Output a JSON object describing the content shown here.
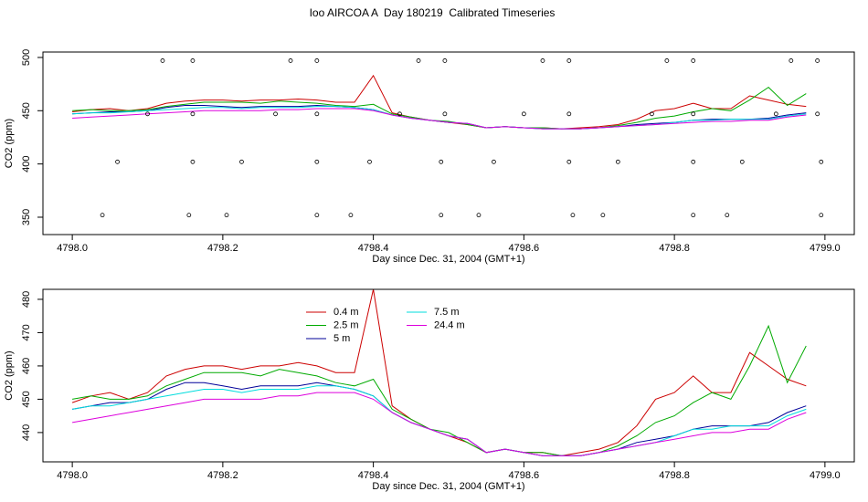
{
  "chart_data": [
    {
      "type": "line",
      "title": "Ioo AIRCOA A  Day 180219  Calibrated Timeseries",
      "x_label": "Day since Dec. 31, 2004 (GMT+1)",
      "y_label": "CO2 (ppm)",
      "xlim": [
        4797.961,
        4799.039
      ],
      "ylim": [
        333.7,
        505.1
      ],
      "xticks": [
        {
          "value": 4798,
          "label": "4798.0"
        },
        4798.2,
        4798.4,
        4798.6,
        4798.8,
        {
          "value": 4799,
          "label": "4799.0"
        }
      ],
      "yticks": [
        350,
        400,
        450,
        500
      ],
      "x": [
        4798,
        4798.025,
        4798.05,
        4798.075,
        4798.1,
        4798.125,
        4798.15,
        4798.175,
        4798.2,
        4798.225,
        4798.25,
        4798.275,
        4798.3,
        4798.325,
        4798.35,
        4798.375,
        4798.4,
        4798.425,
        4798.45,
        4798.475,
        4798.5,
        4798.525,
        4798.55,
        4798.575,
        4798.6,
        4798.625,
        4798.65,
        4798.675,
        4798.7,
        4798.725,
        4798.75,
        4798.775,
        4798.8,
        4798.825,
        4798.85,
        4798.875,
        4798.9,
        4798.925,
        4798.95,
        4798.975
      ],
      "series": [
        {
          "color": "#cc0000",
          "values": [
            449,
            451,
            452,
            450,
            452,
            457,
            459,
            460,
            460,
            459,
            460,
            460,
            461,
            460,
            458,
            458,
            483,
            448,
            444,
            441,
            439,
            437,
            434,
            435,
            434,
            434,
            433,
            434,
            435,
            437,
            442,
            450,
            452,
            457,
            452,
            452,
            464,
            460,
            456,
            454
          ]
        },
        {
          "color": "#00aa00",
          "values": [
            450,
            451,
            450,
            450,
            451,
            454,
            456,
            458,
            458,
            458,
            457,
            459,
            458,
            457,
            455,
            454,
            456,
            447,
            444,
            441,
            440,
            437,
            434,
            435,
            434,
            434,
            433,
            433,
            434,
            436,
            439,
            443,
            445,
            449,
            452,
            450,
            460,
            472,
            455,
            466
          ]
        },
        {
          "color": "#000099",
          "values": [
            447,
            448,
            449,
            449,
            450,
            453,
            455,
            455,
            454,
            453,
            454,
            454,
            454,
            455,
            454,
            453,
            451,
            446,
            443,
            441,
            439,
            438,
            434,
            435,
            434,
            433,
            433,
            433,
            434,
            435,
            437,
            438,
            439,
            441,
            442,
            442,
            442,
            443,
            446,
            448
          ]
        },
        {
          "color": "#00dddd",
          "values": [
            447,
            448,
            448,
            449,
            450,
            451,
            452,
            453,
            453,
            452,
            453,
            453,
            453,
            454,
            454,
            453,
            451,
            446,
            443,
            441,
            439,
            438,
            434,
            435,
            434,
            433,
            433,
            433,
            434,
            435,
            436,
            437,
            439,
            441,
            441,
            442,
            442,
            442,
            445,
            447
          ]
        },
        {
          "color": "#dd00dd",
          "values": [
            443,
            444,
            445,
            446,
            447,
            448,
            449,
            450,
            450,
            450,
            450,
            451,
            451,
            452,
            452,
            452,
            450,
            446,
            443,
            441,
            439,
            438,
            434,
            435,
            434,
            433,
            433,
            433,
            434,
            435,
            436,
            437,
            438,
            439,
            440,
            440,
            441,
            441,
            444,
            446
          ]
        }
      ],
      "points": {
        "color": "#000000",
        "x": [
          4798.12,
          4798.16,
          4798.29,
          4798.325,
          4798.46,
          4798.495,
          4798.625,
          4798.66,
          4798.79,
          4798.825,
          4798.955,
          4798.99,
          4798.1,
          4798.16,
          4798.27,
          4798.325,
          4798.435,
          4798.495,
          4798.6,
          4798.66,
          4798.77,
          4798.825,
          4798.935,
          4798.99,
          4798.06,
          4798.16,
          4798.225,
          4798.325,
          4798.395,
          4798.49,
          4798.56,
          4798.66,
          4798.725,
          4798.825,
          4798.89,
          4798.995,
          4798.04,
          4798.155,
          4798.205,
          4798.325,
          4798.37,
          4798.49,
          4798.54,
          4798.665,
          4798.705,
          4798.825,
          4798.87,
          4798.995
        ],
        "y": [
          497,
          497,
          497,
          497,
          497,
          497,
          497,
          497,
          497,
          497,
          497,
          497,
          447,
          447,
          447,
          447,
          447,
          447,
          447,
          447,
          447,
          447,
          447,
          447,
          402,
          402,
          402,
          402,
          402,
          402,
          402,
          402,
          402,
          402,
          402,
          402,
          352,
          352,
          352,
          352,
          352,
          352,
          352,
          352,
          352,
          352,
          352,
          352
        ]
      }
    },
    {
      "type": "line",
      "x_label": "Day since Dec. 31, 2004 (GMT+1)",
      "y_label": "CO2 (ppm)",
      "xlim": [
        4797.961,
        4799.039
      ],
      "ylim": [
        431.2,
        483
      ],
      "xticks": [
        {
          "value": 4798,
          "label": "4798.0"
        },
        4798.2,
        4798.4,
        4798.6,
        4798.8,
        {
          "value": 4799,
          "label": "4799.0"
        }
      ],
      "yticks": [
        440,
        450,
        460,
        470,
        480
      ],
      "legend": "top-left",
      "x": [
        4798,
        4798.025,
        4798.05,
        4798.075,
        4798.1,
        4798.125,
        4798.15,
        4798.175,
        4798.2,
        4798.225,
        4798.25,
        4798.275,
        4798.3,
        4798.325,
        4798.35,
        4798.375,
        4798.4,
        4798.425,
        4798.45,
        4798.475,
        4798.5,
        4798.525,
        4798.55,
        4798.575,
        4798.6,
        4798.625,
        4798.65,
        4798.675,
        4798.7,
        4798.725,
        4798.75,
        4798.775,
        4798.8,
        4798.825,
        4798.85,
        4798.875,
        4798.9,
        4798.925,
        4798.95,
        4798.975
      ],
      "series": [
        {
          "name": "0.4 m",
          "color": "#cc0000",
          "values": [
            449,
            451,
            452,
            450,
            452,
            457,
            459,
            460,
            460,
            459,
            460,
            460,
            461,
            460,
            458,
            458,
            483,
            448,
            444,
            441,
            439,
            437,
            434,
            435,
            434,
            434,
            433,
            434,
            435,
            437,
            442,
            450,
            452,
            457,
            452,
            452,
            464,
            460,
            456,
            454
          ]
        },
        {
          "name": "2.5 m",
          "color": "#00aa00",
          "values": [
            450,
            451,
            450,
            450,
            451,
            454,
            456,
            458,
            458,
            458,
            457,
            459,
            458,
            457,
            455,
            454,
            456,
            447,
            444,
            441,
            440,
            437,
            434,
            435,
            434,
            434,
            433,
            433,
            434,
            436,
            439,
            443,
            445,
            449,
            452,
            450,
            460,
            472,
            455,
            466
          ]
        },
        {
          "name": "5 m",
          "color": "#000099",
          "values": [
            447,
            448,
            449,
            449,
            450,
            453,
            455,
            455,
            454,
            453,
            454,
            454,
            454,
            455,
            454,
            453,
            451,
            446,
            443,
            441,
            439,
            438,
            434,
            435,
            434,
            433,
            433,
            433,
            434,
            435,
            437,
            438,
            439,
            441,
            442,
            442,
            442,
            443,
            446,
            448
          ]
        },
        {
          "name": "7.5 m",
          "color": "#00dddd",
          "values": [
            447,
            448,
            448,
            449,
            450,
            451,
            452,
            453,
            453,
            452,
            453,
            453,
            453,
            454,
            454,
            453,
            451,
            446,
            443,
            441,
            439,
            438,
            434,
            435,
            434,
            433,
            433,
            433,
            434,
            435,
            436,
            437,
            439,
            441,
            441,
            442,
            442,
            442,
            445,
            447
          ]
        },
        {
          "name": "24.4 m",
          "color": "#dd00dd",
          "values": [
            443,
            444,
            445,
            446,
            447,
            448,
            449,
            450,
            450,
            450,
            450,
            451,
            451,
            452,
            452,
            452,
            450,
            446,
            443,
            441,
            439,
            438,
            434,
            435,
            434,
            433,
            433,
            433,
            434,
            435,
            436,
            437,
            438,
            439,
            440,
            440,
            441,
            441,
            444,
            446
          ]
        }
      ]
    }
  ]
}
